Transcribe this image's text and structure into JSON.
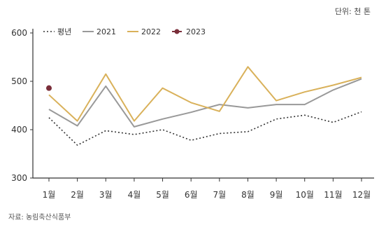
{
  "header": {
    "title": "",
    "unit_label": "단위: 천 톤"
  },
  "source": "자료: 농림축산식품부",
  "colors": {
    "평년": "#333333",
    "2021": "#999999",
    "2022": "#D9B15A",
    "2023": "#7A2E3A",
    "axis": "#333333",
    "grid": "#d8d8d8"
  },
  "chart_data": {
    "type": "line",
    "title": "",
    "xlabel": "",
    "ylabel": "",
    "categories": [
      "1월",
      "2월",
      "3월",
      "4월",
      "5월",
      "6월",
      "7월",
      "8월",
      "9월",
      "10월",
      "11월",
      "12월"
    ],
    "ylim": [
      300,
      600
    ],
    "yticks": [
      300,
      400,
      500,
      600
    ],
    "grid": false,
    "legend_position": "top-left",
    "series": [
      {
        "name": "평년",
        "style": "dotted",
        "values": [
          425,
          368,
          398,
          390,
          400,
          378,
          392,
          396,
          422,
          430,
          415,
          437
        ]
      },
      {
        "name": "2021",
        "style": "solid",
        "values": [
          442,
          408,
          490,
          406,
          422,
          436,
          452,
          445,
          452,
          452,
          482,
          505
        ]
      },
      {
        "name": "2022",
        "style": "solid",
        "values": [
          472,
          418,
          515,
          418,
          486,
          456,
          438,
          530,
          460,
          478,
          492,
          508
        ]
      },
      {
        "name": "2023",
        "style": "marker",
        "values": [
          486,
          null,
          null,
          null,
          null,
          null,
          null,
          null,
          null,
          null,
          null,
          null
        ]
      }
    ]
  }
}
